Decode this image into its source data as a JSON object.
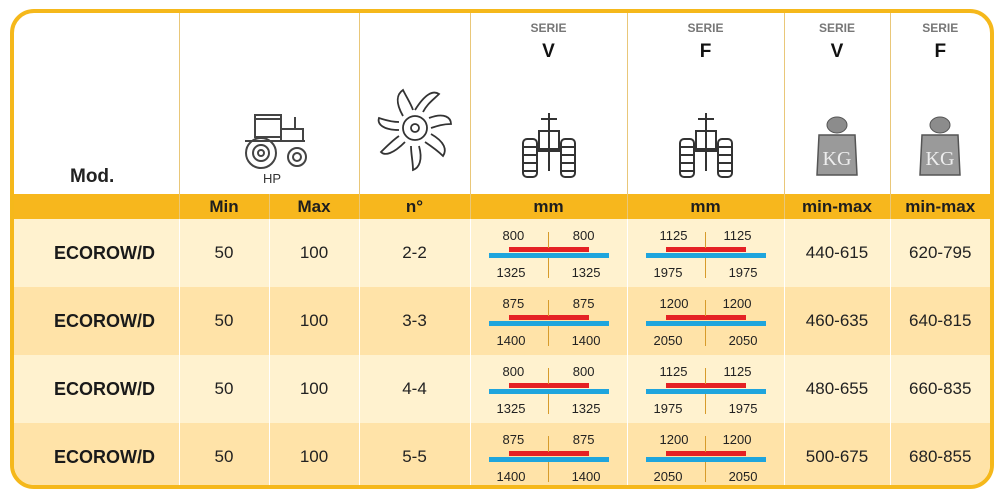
{
  "header": {
    "mod_label": "Mod.",
    "hp_label": "HP",
    "serie_v": {
      "small": "SERIE",
      "big": "V"
    },
    "serie_f": {
      "small": "SERIE",
      "big": "F"
    },
    "weight_v": {
      "small": "SERIE",
      "big": "V"
    },
    "weight_f": {
      "small": "SERIE",
      "big": "F"
    },
    "kg_label": "KG"
  },
  "subheader": {
    "min": "Min",
    "max": "Max",
    "n": "n°",
    "mm_v": "mm",
    "mm_f": "mm",
    "minmax_v": "min-max",
    "minmax_f": "min-max"
  },
  "rows": [
    {
      "model": "ECOROW/D",
      "min": "50",
      "max": "100",
      "n": "2-2",
      "v": {
        "t1": "800",
        "t2": "800",
        "b1": "1325",
        "b2": "1325"
      },
      "f": {
        "t1": "1125",
        "t2": "1125",
        "b1": "1975",
        "b2": "1975"
      },
      "kg_v": "440-615",
      "kg_f": "620-795"
    },
    {
      "model": "ECOROW/D",
      "min": "50",
      "max": "100",
      "n": "3-3",
      "v": {
        "t1": "875",
        "t2": "875",
        "b1": "1400",
        "b2": "1400"
      },
      "f": {
        "t1": "1200",
        "t2": "1200",
        "b1": "2050",
        "b2": "2050"
      },
      "kg_v": "460-635",
      "kg_f": "640-815"
    },
    {
      "model": "ECOROW/D",
      "min": "50",
      "max": "100",
      "n": "4-4",
      "v": {
        "t1": "800",
        "t2": "800",
        "b1": "1325",
        "b2": "1325"
      },
      "f": {
        "t1": "1125",
        "t2": "1125",
        "b1": "1975",
        "b2": "1975"
      },
      "kg_v": "480-655",
      "kg_f": "660-835"
    },
    {
      "model": "ECOROW/D",
      "min": "50",
      "max": "100",
      "n": "5-5",
      "v": {
        "t1": "875",
        "t2": "875",
        "b1": "1400",
        "b2": "1400"
      },
      "f": {
        "t1": "1200",
        "t2": "1200",
        "b1": "2050",
        "b2": "2050"
      },
      "kg_v": "500-675",
      "kg_f": "680-855"
    }
  ],
  "colors": {
    "accent": "#f7b71d",
    "row_light": "#fff2cf",
    "row_dark": "#ffe3a8",
    "bar_red": "#e52124",
    "bar_blue": "#1fa5dd"
  },
  "icons": [
    "tractor-icon",
    "rotor-blade-icon",
    "tractor-rear-icon",
    "weight-kg-icon"
  ]
}
